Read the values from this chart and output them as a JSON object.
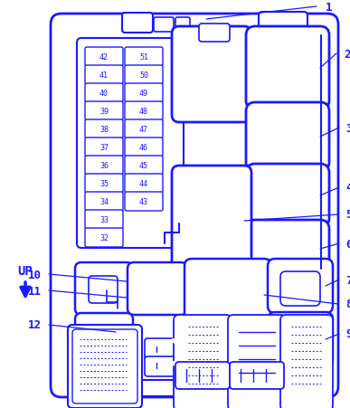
{
  "bg_color": "#ffffff",
  "line_color": "#1a1aff",
  "text_color": "#1a1aff",
  "fig_width": 3.87,
  "fig_height": 4.52,
  "dpi": 100,
  "fuse_pairs": [
    [
      42,
      51
    ],
    [
      41,
      50
    ],
    [
      40,
      49
    ],
    [
      39,
      48
    ],
    [
      38,
      47
    ],
    [
      37,
      46
    ],
    [
      36,
      45
    ],
    [
      35,
      44
    ],
    [
      34,
      43
    ],
    [
      33,
      null
    ],
    [
      32,
      null
    ]
  ]
}
